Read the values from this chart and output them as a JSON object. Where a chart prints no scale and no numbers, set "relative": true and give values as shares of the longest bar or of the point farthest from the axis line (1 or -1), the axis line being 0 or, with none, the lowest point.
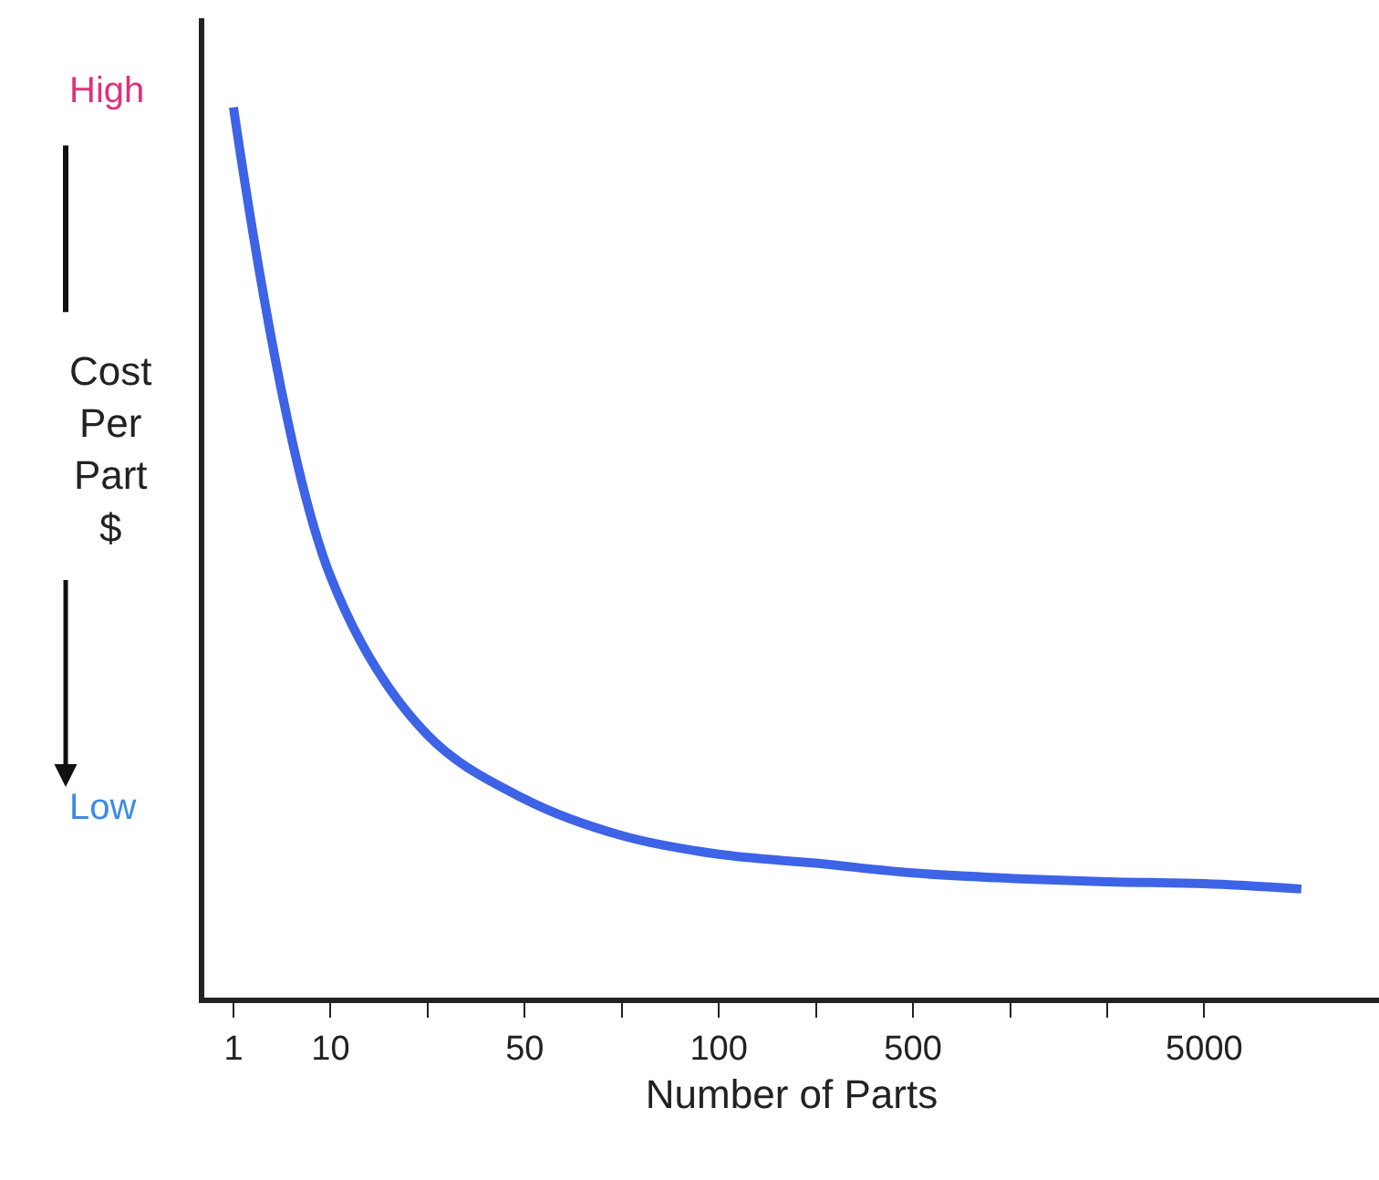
{
  "chart_data": {
    "type": "line",
    "relative": true,
    "xlabel": "Number of Parts",
    "ylabel": "Cost Per Part $",
    "annotations": [
      "High",
      "Low"
    ],
    "categories": [
      "1",
      "10",
      null,
      "50",
      null,
      "100",
      null,
      "500",
      null,
      null,
      "5000",
      null
    ],
    "series": [
      {
        "color": "#3d63e6",
        "values": [
          1.0,
          0.473,
          0.295,
          0.223,
          0.182,
          0.161,
          0.151,
          0.14,
          0.134,
          0.13,
          0.128,
          0.122
        ]
      }
    ],
    "marker": "none",
    "line_style": "solid"
  }
}
